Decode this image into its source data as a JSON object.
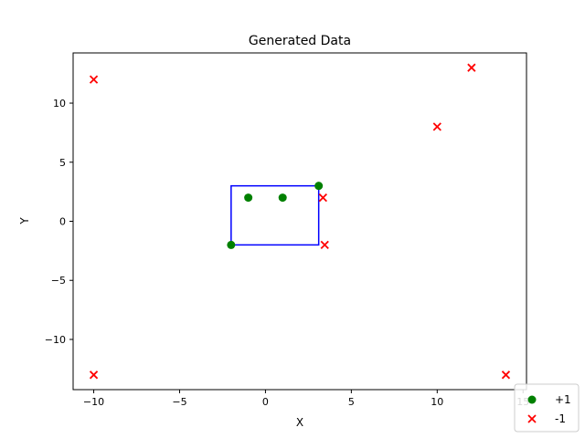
{
  "chart_data": {
    "type": "scatter",
    "title": "Generated Data",
    "xlabel": "X",
    "ylabel": "Y",
    "xlim": [
      -11.2,
      15.2
    ],
    "ylim": [
      -14.25,
      14.25
    ],
    "xticks": [
      -10,
      -5,
      0,
      5,
      10,
      15
    ],
    "yticks": [
      -10,
      -5,
      0,
      5,
      10
    ],
    "xtick_labels": [
      "−10",
      "−5",
      "0",
      "5",
      "10",
      "15"
    ],
    "ytick_labels": [
      "−10",
      "−5",
      "0",
      "5",
      "10"
    ],
    "grid": false,
    "legend_placement": "lower-right",
    "series": [
      {
        "name": "+1",
        "marker": "circle",
        "color": "#008000",
        "points": [
          [
            -2,
            -2
          ],
          [
            -1,
            2
          ],
          [
            1,
            2
          ],
          [
            3.1,
            3
          ]
        ]
      },
      {
        "name": "-1",
        "marker": "x",
        "color": "#ff0000",
        "points": [
          [
            -10,
            12
          ],
          [
            -10,
            -13
          ],
          [
            12,
            13
          ],
          [
            10,
            8
          ],
          [
            3.35,
            2
          ],
          [
            3.45,
            -2
          ],
          [
            14,
            -13
          ]
        ]
      }
    ],
    "rectangle": {
      "color": "#0000ff",
      "x0": -2,
      "y0": -2,
      "x1": 3.1,
      "y1": 3
    }
  }
}
